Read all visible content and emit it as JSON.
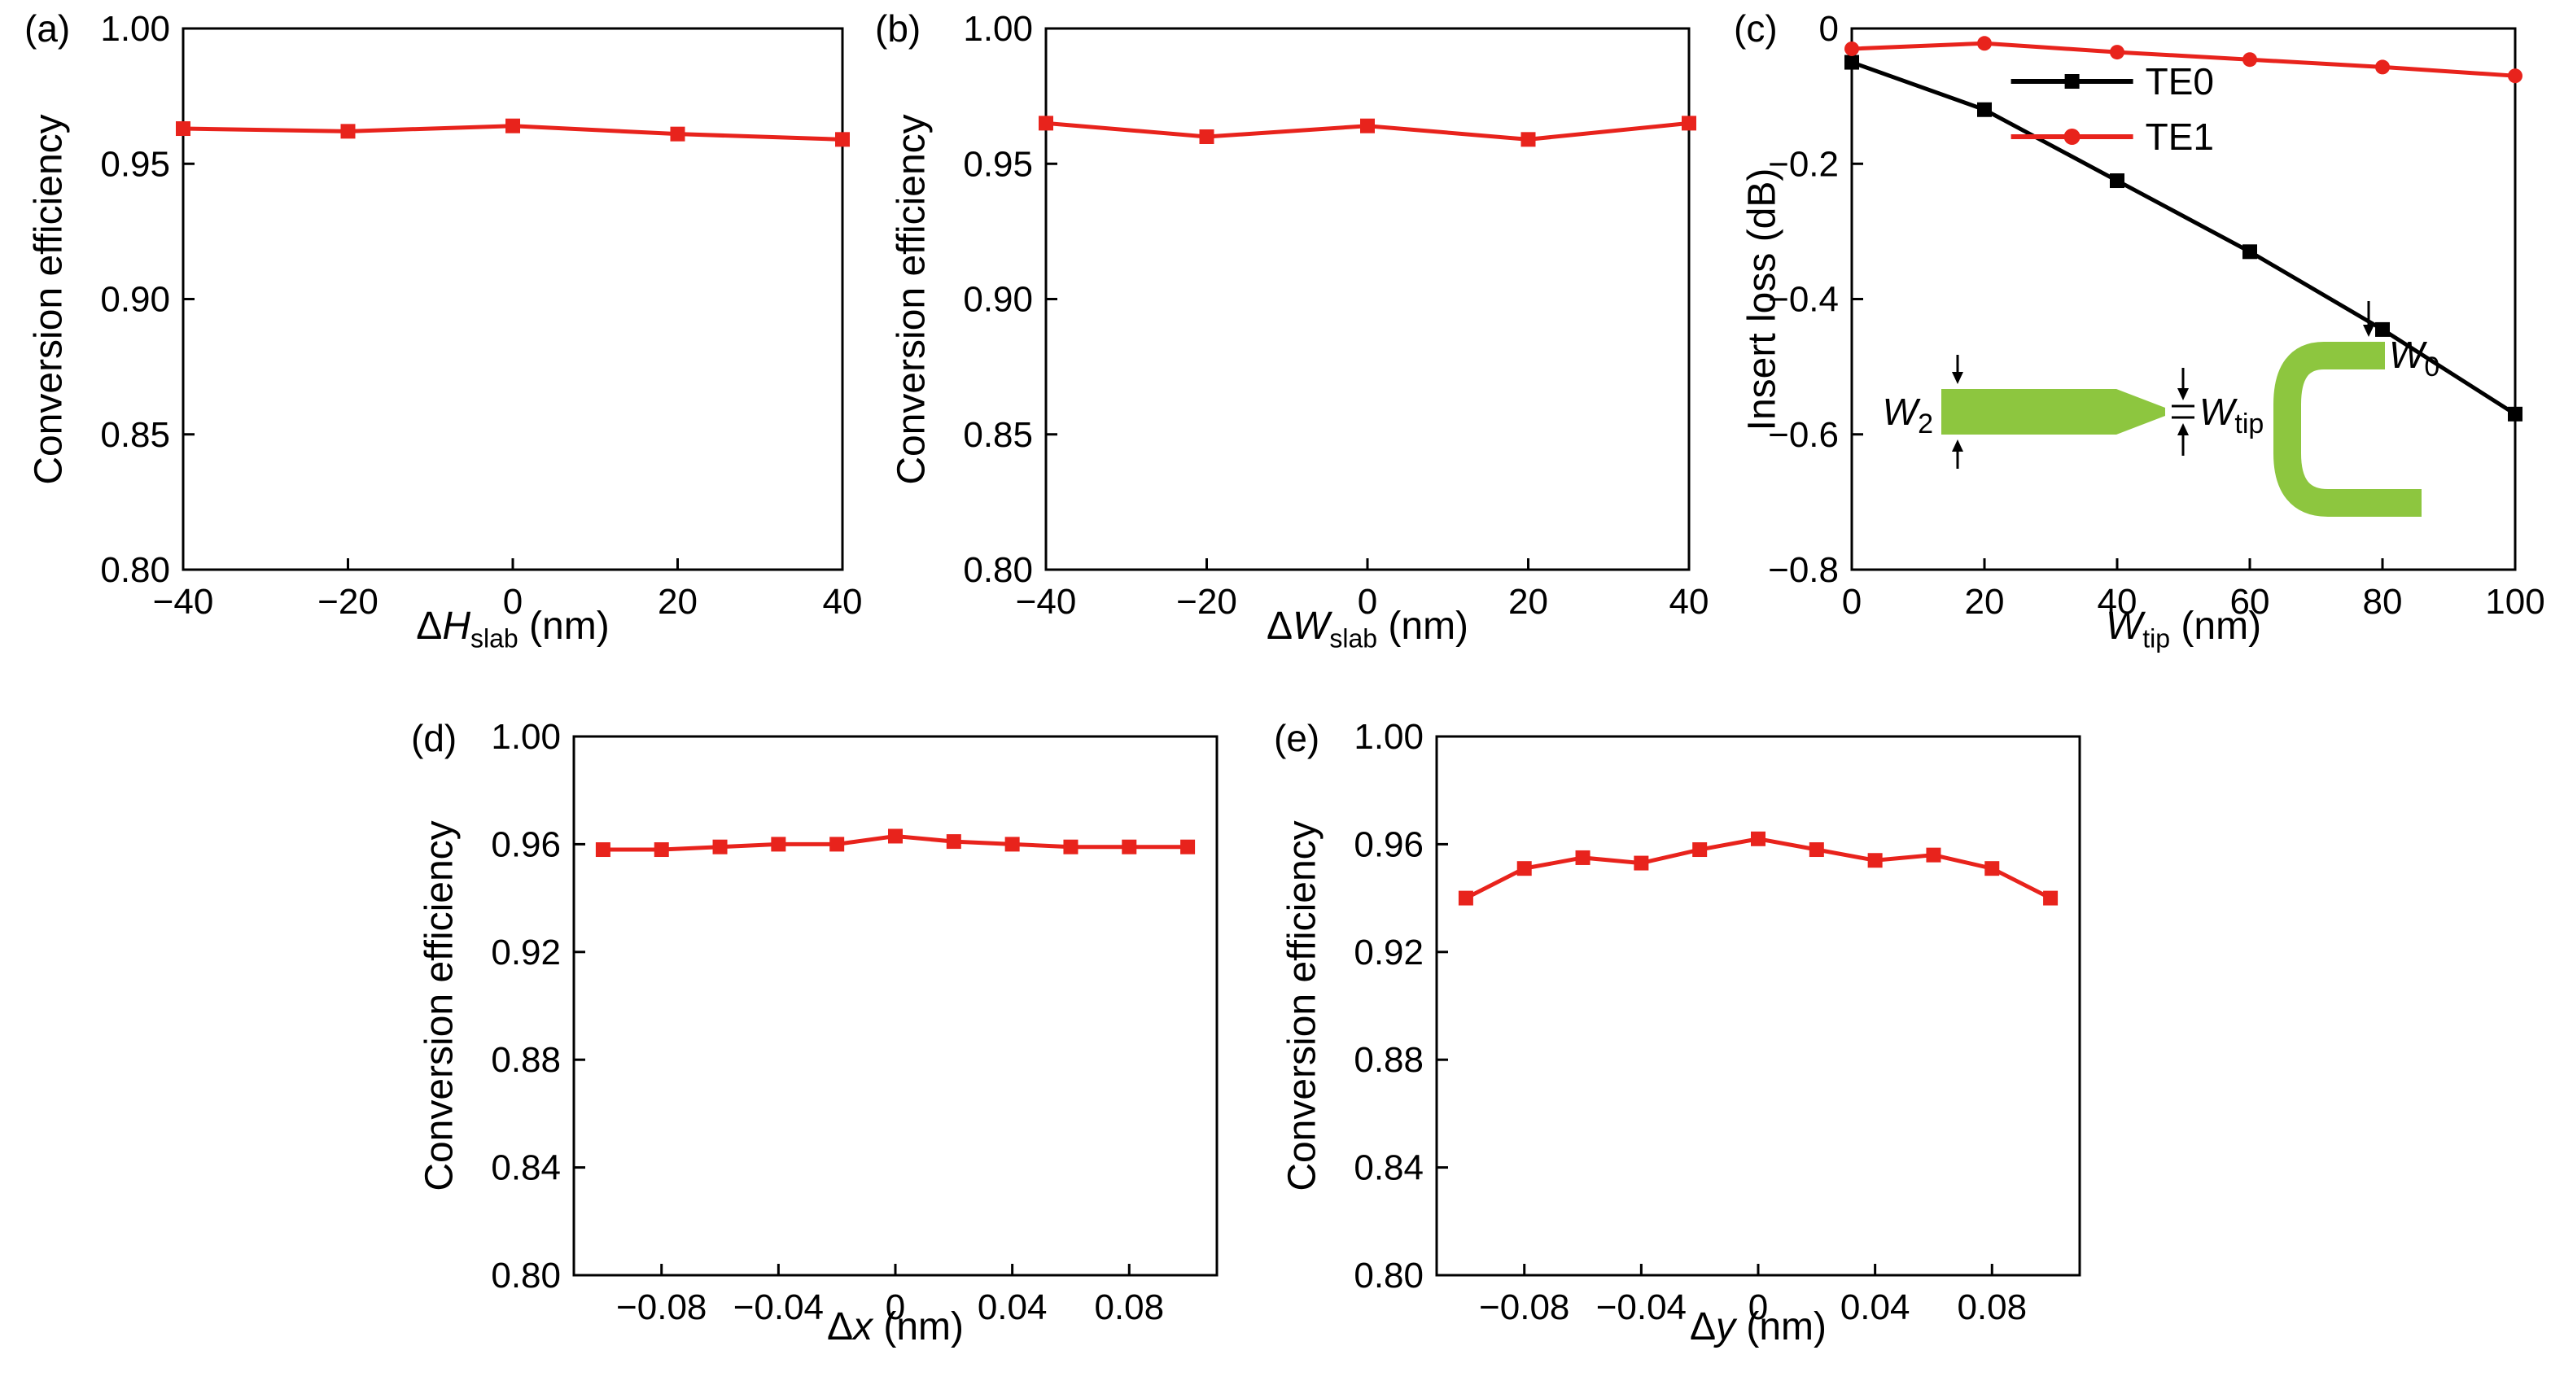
{
  "figure": {
    "panels": [
      {
        "key": "a",
        "letter": "(a)"
      },
      {
        "key": "b",
        "letter": "(b)"
      },
      {
        "key": "c",
        "letter": "(c)"
      },
      {
        "key": "d",
        "letter": "(d)"
      },
      {
        "key": "e",
        "letter": "(e)"
      }
    ],
    "accent_red": "#e8231c",
    "accent_black": "#000000",
    "inset_green": "#8dc63f"
  },
  "chart_data": [
    {
      "panel": "a",
      "type": "line",
      "title": "",
      "xlabel_plain": "ΔH_slab (nm)",
      "xlabel_parts": [
        {
          "t": "Δ"
        },
        {
          "t": "H",
          "italic": true
        },
        {
          "t": "slab",
          "sub": true
        },
        {
          "t": " (nm)"
        }
      ],
      "ylabel": "Conversion efficiency",
      "xlim": [
        -40,
        40
      ],
      "ylim": [
        0.8,
        1.0
      ],
      "grid": false,
      "xticks": [
        -40,
        -20,
        0,
        20,
        40
      ],
      "xtick_labels": [
        "−40",
        "−20",
        "0",
        "20",
        "40"
      ],
      "yticks": [
        0.8,
        0.85,
        0.9,
        0.95,
        1.0
      ],
      "ytick_labels": [
        "0.80",
        "0.85",
        "0.90",
        "0.95",
        "1.00"
      ],
      "series": [
        {
          "name": "",
          "color": "#e8231c",
          "marker": "square",
          "x": [
            -40,
            -20,
            0,
            20,
            40
          ],
          "y": [
            0.963,
            0.962,
            0.964,
            0.961,
            0.959
          ]
        }
      ]
    },
    {
      "panel": "b",
      "type": "line",
      "title": "",
      "xlabel_plain": "ΔW_slab (nm)",
      "xlabel_parts": [
        {
          "t": "Δ"
        },
        {
          "t": "W",
          "italic": true
        },
        {
          "t": "slab",
          "sub": true
        },
        {
          "t": " (nm)"
        }
      ],
      "ylabel": "Conversion efficiency",
      "xlim": [
        -40,
        40
      ],
      "ylim": [
        0.8,
        1.0
      ],
      "grid": false,
      "xticks": [
        -40,
        -20,
        0,
        20,
        40
      ],
      "xtick_labels": [
        "−40",
        "−20",
        "0",
        "20",
        "40"
      ],
      "yticks": [
        0.8,
        0.85,
        0.9,
        0.95,
        1.0
      ],
      "ytick_labels": [
        "0.80",
        "0.85",
        "0.90",
        "0.95",
        "1.00"
      ],
      "series": [
        {
          "name": "",
          "color": "#e8231c",
          "marker": "square",
          "x": [
            -40,
            -20,
            0,
            20,
            40
          ],
          "y": [
            0.965,
            0.96,
            0.964,
            0.959,
            0.965
          ]
        }
      ]
    },
    {
      "panel": "c",
      "type": "line",
      "title": "",
      "xlabel_plain": "W_tip (nm)",
      "xlabel_parts": [
        {
          "t": "W",
          "italic": true
        },
        {
          "t": "tip",
          "sub": true
        },
        {
          "t": " (nm)"
        }
      ],
      "ylabel": "Insert loss (dB)",
      "xlim": [
        0,
        100
      ],
      "ylim": [
        -0.8,
        0
      ],
      "grid": false,
      "legend": true,
      "legend_position": "upper right",
      "xticks": [
        0,
        20,
        40,
        60,
        80,
        100
      ],
      "xtick_labels": [
        "0",
        "20",
        "40",
        "60",
        "80",
        "100"
      ],
      "yticks": [
        0,
        -0.2,
        -0.4,
        -0.6,
        -0.8
      ],
      "ytick_labels": [
        "0",
        "−0.2",
        "−0.4",
        "−0.6",
        "−0.8"
      ],
      "series": [
        {
          "name": "TE0",
          "color": "#000000",
          "marker": "square",
          "x": [
            0,
            20,
            40,
            60,
            80,
            100
          ],
          "y": [
            -0.05,
            -0.12,
            -0.225,
            -0.33,
            -0.445,
            -0.57
          ]
        },
        {
          "name": "TE1",
          "color": "#e8231c",
          "marker": "circle",
          "x": [
            0,
            20,
            40,
            60,
            80,
            100
          ],
          "y": [
            -0.03,
            -0.022,
            -0.035,
            -0.046,
            -0.057,
            -0.07
          ]
        }
      ],
      "inset": {
        "color": "#8dc63f",
        "labels": {
          "w2": {
            "main": "W",
            "sub": "2"
          },
          "wtip": {
            "main": "W",
            "sub": "tip"
          },
          "w0": {
            "main": "W",
            "sub": "0"
          }
        }
      }
    },
    {
      "panel": "d",
      "type": "line",
      "title": "",
      "xlabel_plain": "Δx (nm)",
      "xlabel_parts": [
        {
          "t": "Δ"
        },
        {
          "t": "x",
          "italic": true
        },
        {
          "t": " (nm)"
        }
      ],
      "ylabel": "Conversion efficiency",
      "xlim": [
        -0.11,
        0.11
      ],
      "ylim": [
        0.8,
        1.0
      ],
      "grid": false,
      "xticks": [
        -0.08,
        -0.04,
        0,
        0.04,
        0.08
      ],
      "xtick_labels": [
        "−0.08",
        "−0.04",
        "0",
        "0.04",
        "0.08"
      ],
      "yticks": [
        0.8,
        0.84,
        0.88,
        0.92,
        0.96,
        1.0
      ],
      "ytick_labels": [
        "0.80",
        "0.84",
        "0.88",
        "0.92",
        "0.96",
        "1.00"
      ],
      "series": [
        {
          "name": "",
          "color": "#e8231c",
          "marker": "square",
          "x": [
            -0.1,
            -0.08,
            -0.06,
            -0.04,
            -0.02,
            0,
            0.02,
            0.04,
            0.06,
            0.08,
            0.1
          ],
          "y": [
            0.958,
            0.958,
            0.959,
            0.96,
            0.96,
            0.963,
            0.961,
            0.96,
            0.959,
            0.959,
            0.959
          ]
        }
      ]
    },
    {
      "panel": "e",
      "type": "line",
      "title": "",
      "xlabel_plain": "Δy (nm)",
      "xlabel_parts": [
        {
          "t": "Δ"
        },
        {
          "t": "y",
          "italic": true
        },
        {
          "t": " (nm)"
        }
      ],
      "ylabel": "Conversion efficiency",
      "xlim": [
        -0.11,
        0.11
      ],
      "ylim": [
        0.8,
        1.0
      ],
      "grid": false,
      "xticks": [
        -0.08,
        -0.04,
        0,
        0.04,
        0.08
      ],
      "xtick_labels": [
        "−0.08",
        "−0.04",
        "0",
        "0.04",
        "0.08"
      ],
      "yticks": [
        0.8,
        0.84,
        0.88,
        0.92,
        0.96,
        1.0
      ],
      "ytick_labels": [
        "0.80",
        "0.84",
        "0.88",
        "0.92",
        "0.96",
        "1.00"
      ],
      "series": [
        {
          "name": "",
          "color": "#e8231c",
          "marker": "square",
          "x": [
            -0.1,
            -0.08,
            -0.06,
            -0.04,
            -0.02,
            0,
            0.02,
            0.04,
            0.06,
            0.08,
            0.1
          ],
          "y": [
            0.94,
            0.951,
            0.955,
            0.953,
            0.958,
            0.962,
            0.958,
            0.954,
            0.956,
            0.951,
            0.94
          ]
        }
      ]
    }
  ]
}
